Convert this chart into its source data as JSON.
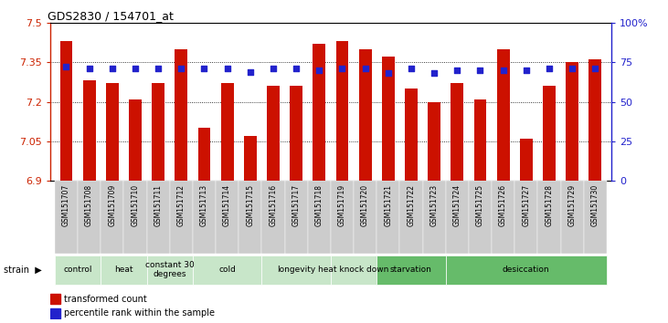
{
  "title": "GDS2830 / 154701_at",
  "samples": [
    "GSM151707",
    "GSM151708",
    "GSM151709",
    "GSM151710",
    "GSM151711",
    "GSM151712",
    "GSM151713",
    "GSM151714",
    "GSM151715",
    "GSM151716",
    "GSM151717",
    "GSM151718",
    "GSM151719",
    "GSM151720",
    "GSM151721",
    "GSM151722",
    "GSM151723",
    "GSM151724",
    "GSM151725",
    "GSM151726",
    "GSM151727",
    "GSM151728",
    "GSM151729",
    "GSM151730"
  ],
  "bar_values": [
    7.43,
    7.28,
    7.27,
    7.21,
    7.27,
    7.4,
    7.1,
    7.27,
    7.07,
    7.26,
    7.26,
    7.42,
    7.43,
    7.4,
    7.37,
    7.25,
    7.2,
    7.27,
    7.21,
    7.4,
    7.06,
    7.26,
    7.35,
    7.36
  ],
  "percentile_values": [
    72,
    71,
    71,
    71,
    71,
    71,
    71,
    71,
    69,
    71,
    71,
    70,
    71,
    71,
    68,
    71,
    68,
    70,
    70,
    70,
    70,
    71,
    71,
    71
  ],
  "y_min": 6.9,
  "y_max": 7.5,
  "y_ticks": [
    6.9,
    7.05,
    7.2,
    7.35,
    7.5
  ],
  "right_y_ticks": [
    0,
    25,
    50,
    75,
    100
  ],
  "right_y_tick_labels": [
    "0",
    "25",
    "50",
    "75",
    "100%"
  ],
  "bar_color": "#CC1100",
  "dot_color": "#2222CC",
  "plot_bg": "#ffffff",
  "groups": [
    {
      "label": "control",
      "indices": [
        0,
        1
      ],
      "color": "#c8e6c9"
    },
    {
      "label": "heat",
      "indices": [
        2,
        3
      ],
      "color": "#c8e6c9"
    },
    {
      "label": "constant 30\ndegrees",
      "indices": [
        4,
        5
      ],
      "color": "#c8e6c9"
    },
    {
      "label": "cold",
      "indices": [
        6,
        7,
        8
      ],
      "color": "#c8e6c9"
    },
    {
      "label": "longevity",
      "indices": [
        9,
        10,
        11
      ],
      "color": "#c8e6c9"
    },
    {
      "label": "heat knock down",
      "indices": [
        12,
        13
      ],
      "color": "#c8e6c9"
    },
    {
      "label": "starvation",
      "indices": [
        14,
        15,
        16
      ],
      "color": "#66bb6a"
    },
    {
      "label": "desiccation",
      "indices": [
        17,
        18,
        19,
        20,
        21,
        22,
        23
      ],
      "color": "#66bb6a"
    }
  ],
  "legend_bar_label": "transformed count",
  "legend_dot_label": "percentile rank within the sample",
  "axes_color": "#CC2200",
  "right_axes_color": "#2222CC",
  "grid_color": "#000000",
  "tick_label_bg": "#d0d0d0"
}
